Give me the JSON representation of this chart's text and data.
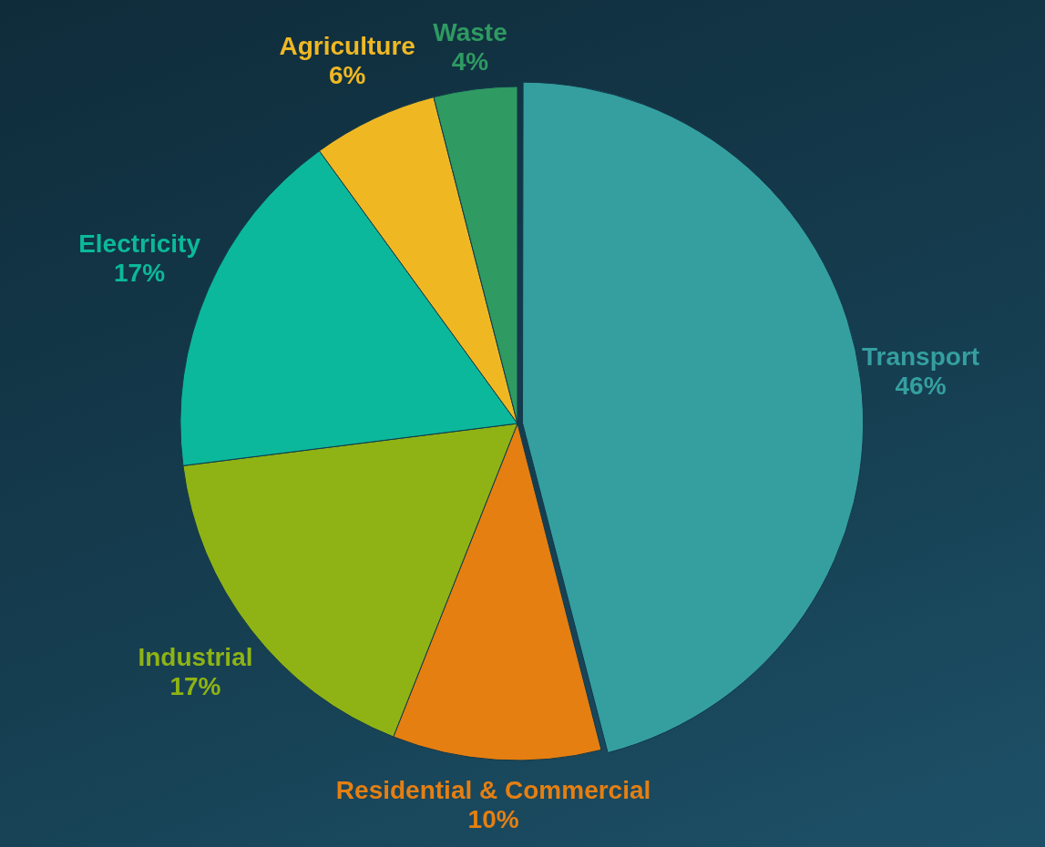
{
  "chart_data": {
    "type": "pie",
    "categories": [
      "Transport",
      "Residential & Commercial",
      "Industrial",
      "Electricity",
      "Agriculture",
      "Waste"
    ],
    "values": [
      46,
      10,
      17,
      17,
      6,
      4
    ],
    "value_labels": [
      "46%",
      "10%",
      "17%",
      "17%",
      "6%",
      "4%"
    ],
    "colors": [
      "#359fa0",
      "#e57f12",
      "#8fb314",
      "#0cb89c",
      "#efb823",
      "#2f9a62"
    ],
    "legend": false
  }
}
